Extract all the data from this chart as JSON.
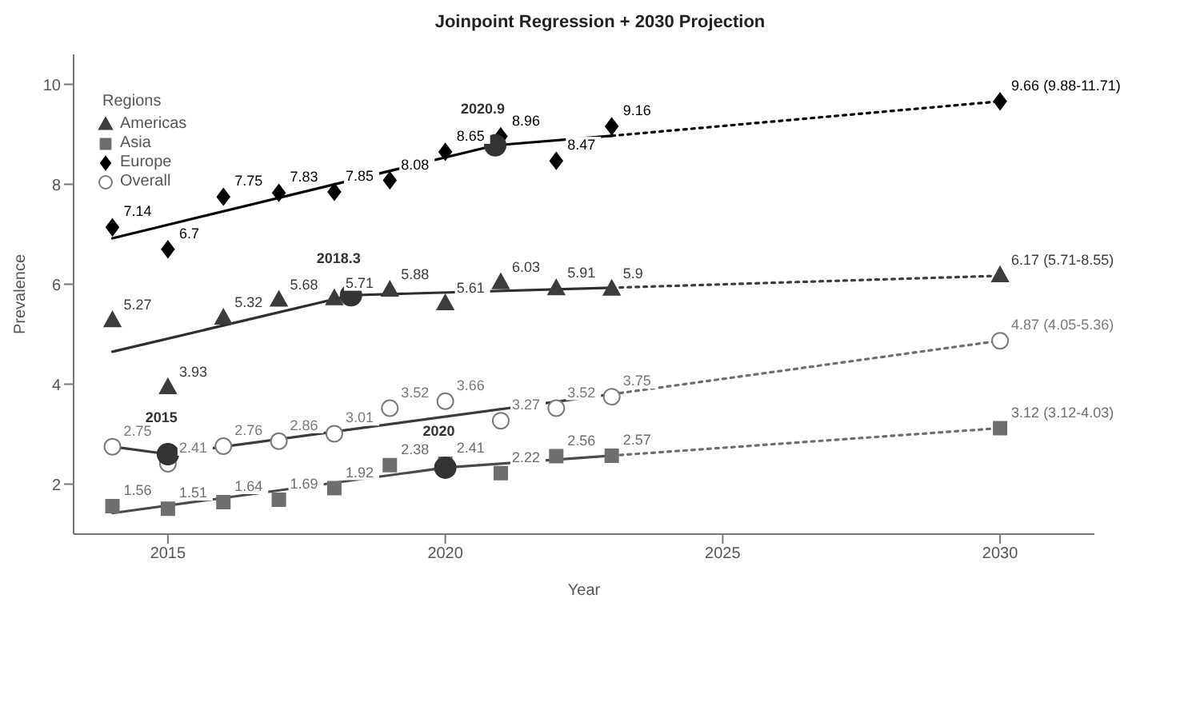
{
  "chart_data": {
    "type": "scatter",
    "title": "Joinpoint Regression + 2030 Projection",
    "xlabel": "Year",
    "ylabel": "Prevalence",
    "legend_title": "Regions",
    "legend": "top left",
    "grid": false,
    "xlim": [
      2013.3,
      2031.7
    ],
    "xticks": [
      2015,
      2020,
      2025,
      2030
    ],
    "ylim": [
      1.0,
      10.6
    ],
    "yticks": [
      2,
      4,
      6,
      8,
      10
    ],
    "series": [
      {
        "name": "Americas",
        "marker": "triangle",
        "color": "#3c3c3c",
        "x": [
          2014,
          2015,
          2016,
          2017,
          2018,
          2019,
          2020,
          2021,
          2022,
          2023,
          2030
        ],
        "values": [
          5.27,
          3.93,
          5.32,
          5.68,
          5.71,
          5.88,
          5.61,
          6.03,
          5.91,
          5.9,
          6.17
        ],
        "value_labels": [
          "5.27",
          "3.93",
          "5.32",
          "5.68",
          "5.71",
          "5.88",
          "5.61",
          "6.03",
          "5.91",
          "5.9",
          "6.17 (5.71-8.55)"
        ]
      },
      {
        "name": "Asia",
        "marker": "square",
        "color": "#6e6e6e",
        "x": [
          2014,
          2015,
          2016,
          2017,
          2018,
          2019,
          2020,
          2021,
          2022,
          2023,
          2030
        ],
        "values": [
          1.56,
          1.51,
          1.64,
          1.69,
          1.92,
          2.38,
          2.41,
          2.22,
          2.56,
          2.57,
          3.12
        ],
        "value_labels": [
          "1.56",
          "1.51",
          "1.64",
          "1.69",
          "1.92",
          "2.38",
          "2.41",
          "2.22",
          "2.56",
          "2.57",
          "3.12 (3.12-4.03)"
        ]
      },
      {
        "name": "Europe",
        "marker": "diamond",
        "color": "#000000",
        "x": [
          2014,
          2015,
          2016,
          2017,
          2018,
          2019,
          2020,
          2021,
          2022,
          2023,
          2030
        ],
        "values": [
          7.14,
          6.7,
          7.75,
          7.83,
          7.85,
          8.08,
          8.65,
          8.96,
          8.47,
          9.16,
          9.66
        ],
        "value_labels": [
          "7.14",
          "6.7",
          "7.75",
          "7.83",
          "7.85",
          "8.08",
          "8.65",
          "8.96",
          "8.47",
          "9.16",
          "9.66 (9.88-11.71)"
        ]
      },
      {
        "name": "Overall",
        "marker": "circle",
        "color": "#7a7a7a",
        "x": [
          2014,
          2015,
          2016,
          2017,
          2018,
          2019,
          2020,
          2021,
          2022,
          2023,
          2030
        ],
        "values": [
          2.75,
          2.41,
          2.76,
          2.86,
          3.01,
          3.52,
          3.66,
          3.27,
          3.52,
          3.75,
          4.87
        ],
        "value_labels": [
          "2.75",
          "2.41",
          "2.76",
          "2.86",
          "3.01",
          "3.52",
          "3.66",
          "3.27",
          "3.52",
          "3.75",
          "4.87 (4.05-5.36)"
        ]
      },
      {
        "type": "line",
        "color": "#000000",
        "x": [
          2014,
          2020.9,
          2023
        ],
        "values": [
          6.92,
          8.78,
          8.97
        ]
      },
      {
        "type": "line",
        "color": "#2e2e2e",
        "x": [
          2014,
          2018.3,
          2023
        ],
        "values": [
          4.65,
          5.78,
          5.93
        ]
      },
      {
        "type": "line",
        "color": "#3a3a3a",
        "x": [
          2014,
          2015,
          2023
        ],
        "values": [
          2.75,
          2.6,
          3.8
        ]
      },
      {
        "type": "line",
        "color": "#4a4a4a",
        "x": [
          2014,
          2020,
          2023
        ],
        "values": [
          1.42,
          2.33,
          2.57
        ]
      },
      {
        "type": "line",
        "line_style": "dotted",
        "color": "#000000",
        "x": [
          2023,
          2030
        ],
        "values": [
          8.97,
          9.66
        ]
      },
      {
        "type": "line",
        "line_style": "dotted",
        "color": "#3c3c3c",
        "x": [
          2023,
          2030
        ],
        "values": [
          5.93,
          6.17
        ]
      },
      {
        "type": "line",
        "line_style": "dotted",
        "color": "#6e6e6e",
        "x": [
          2023,
          2030
        ],
        "values": [
          3.8,
          4.87
        ]
      },
      {
        "type": "line",
        "line_style": "dotted",
        "color": "#6e6e6e",
        "x": [
          2023,
          2030
        ],
        "values": [
          2.57,
          3.12
        ]
      },
      {
        "type": "scatter",
        "marker": "circle",
        "color": "#333333",
        "x": [
          2020.9,
          2018.3,
          2015,
          2020
        ],
        "values": [
          8.78,
          5.78,
          2.6,
          2.33
        ]
      }
    ],
    "annotations": [
      {
        "text": "2020.9",
        "x": 2020.9,
        "y": 8.78
      },
      {
        "text": "2018.3",
        "x": 2018.3,
        "y": 5.78
      },
      {
        "text": "2015",
        "x": 2015,
        "y": 2.6
      },
      {
        "text": "2020",
        "x": 2020,
        "y": 2.33
      }
    ]
  }
}
